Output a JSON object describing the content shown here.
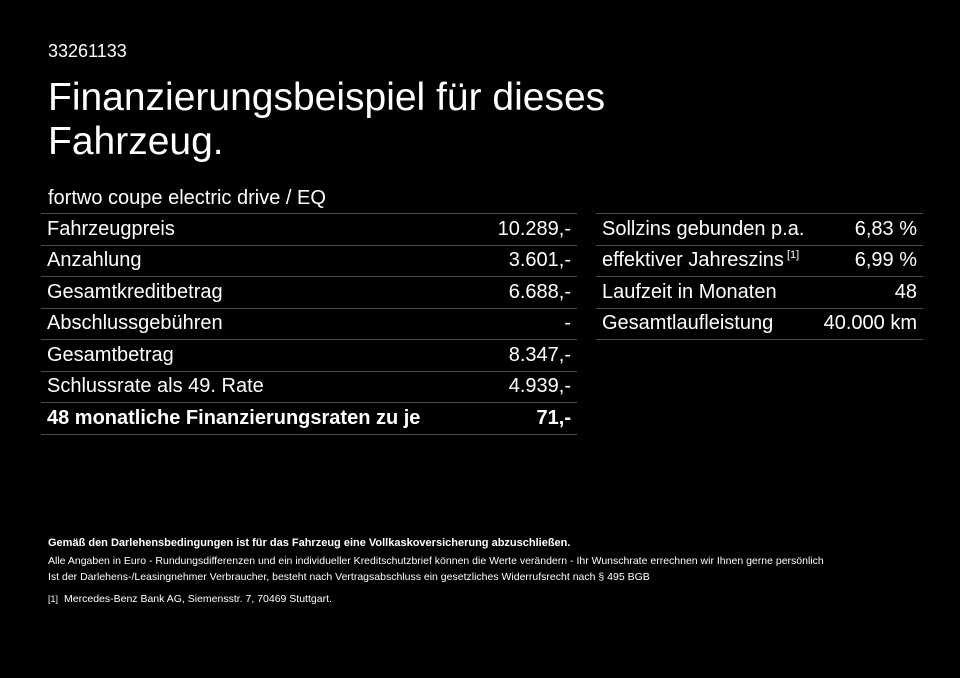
{
  "offer_code": "33261133",
  "title": "Finanzierungsbeispiel für dieses Fahrzeug.",
  "model": "fortwo coupe electric drive / EQ",
  "left_table": [
    {
      "label": "Fahrzeugpreis",
      "value": "10.289,-",
      "bold": false
    },
    {
      "label": "Anzahlung",
      "value": "3.601,-",
      "bold": false
    },
    {
      "label": "Gesamtkreditbetrag",
      "value": "6.688,-",
      "bold": false
    },
    {
      "label": "Abschlussgebühren",
      "value": "-",
      "bold": false
    },
    {
      "label": "Gesamtbetrag",
      "value": "8.347,-",
      "bold": false
    },
    {
      "label": "Schlussrate als 49. Rate",
      "value": "4.939,-",
      "bold": false
    },
    {
      "label": "48 monatliche Finanzierungsraten zu je",
      "value": "71,-",
      "bold": true
    }
  ],
  "right_table": [
    {
      "label": "Sollzins gebunden p.a.",
      "ref": "",
      "value": "6,83 %"
    },
    {
      "label": "effektiver Jahreszins",
      "ref": "[1]",
      "value": "6,99 %"
    },
    {
      "label": "Laufzeit in Monaten",
      "ref": "",
      "value": "48"
    },
    {
      "label": "Gesamtlaufleistung",
      "ref": "",
      "value": "40.000 km"
    }
  ],
  "notes": {
    "insurance": "Gemäß den Darlehensbedingungen ist für das Fahrzeug eine Vollkaskoversicherung abzuschließen.",
    "disclaimer": "Alle Angaben in Euro - Rundungsdifferenzen und ein individueller Kreditschutzbrief können die Werte verändern - Ihr Wunschrate errechnen wir Ihnen gerne persönlich",
    "withdrawal": "Ist der Darlehens-/Leasingnehmer Verbraucher, besteht nach Vertragsabschluss ein gesetzliches Widerrufsrecht nach § 495 BGB",
    "footnote_mark": "[1]",
    "footnote_text": "Mercedes-Benz Bank AG, Siemensstr. 7, 70469 Stuttgart."
  },
  "colors": {
    "background": "#000000",
    "text": "#ffffff",
    "divider": "#4a4a4a"
  }
}
